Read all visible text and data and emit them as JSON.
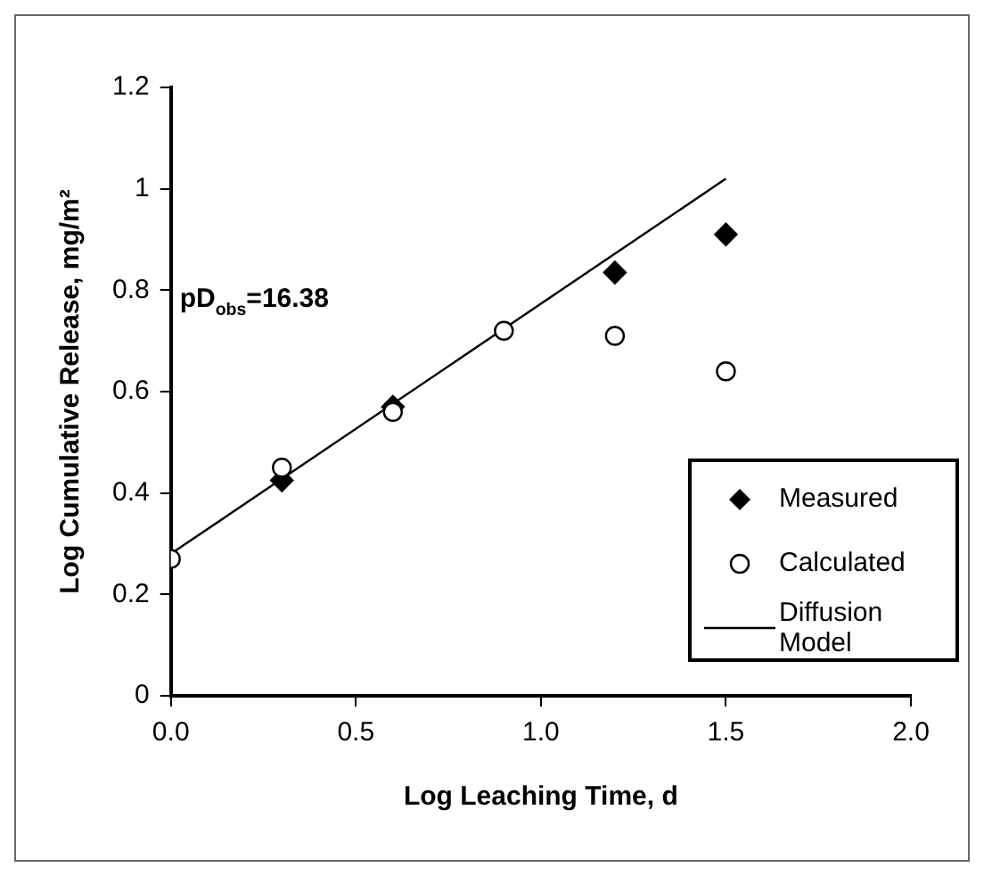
{
  "chart_data": {
    "type": "scatter",
    "xlabel": "Log Leaching Time, d",
    "ylabel": "Log Cumulative Release, mg/m²",
    "xlim": [
      0,
      2
    ],
    "xticks": [
      {
        "value": 0,
        "label": "0.0"
      },
      {
        "value": 0.5,
        "label": "0.5"
      },
      {
        "value": 1,
        "label": "1.0"
      },
      {
        "value": 1.5,
        "label": "1.5"
      },
      {
        "value": 2,
        "label": "2.0"
      }
    ],
    "ylim": [
      0,
      1.2
    ],
    "yticks": [
      0,
      0.2,
      0.4,
      0.6,
      0.8,
      1,
      1.2
    ],
    "grid": false,
    "legend": "right",
    "annotations": [
      "pD$_{obs}$=16.38"
    ],
    "series": [
      {
        "name": "Measured",
        "type": "scatter",
        "marker": "diamond",
        "color": "#000000",
        "x": [
          0.3,
          0.6,
          1.2,
          1.5
        ],
        "values": [
          0.425,
          0.57,
          0.835,
          0.91
        ]
      },
      {
        "name": "Calculated",
        "type": "scatter",
        "marker": "circle",
        "color": "#000000",
        "x": [
          0,
          0.3,
          0.6,
          0.9,
          1.2,
          1.5
        ],
        "values": [
          0.27,
          0.45,
          0.56,
          0.72,
          0.71,
          0.64
        ]
      },
      {
        "name": "Diffusion Model",
        "type": "line",
        "marker": "none",
        "color": "#000000",
        "x": [
          0,
          1.5
        ],
        "values": [
          0.28,
          1.02
        ]
      }
    ]
  }
}
